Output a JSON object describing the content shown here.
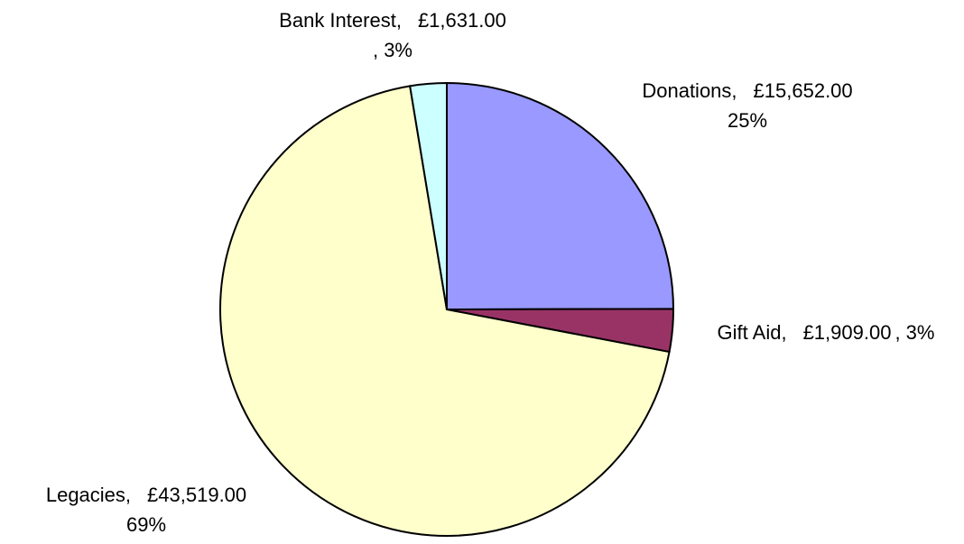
{
  "chart_data": {
    "type": "pie",
    "categories": [
      "Donations",
      "Gift Aid",
      "Legacies",
      "Bank Interest"
    ],
    "values": [
      15652,
      1909,
      43519,
      1631
    ],
    "value_labels": [
      "£15,652.00",
      "£1,909.00",
      "£43,519.00",
      "£1,631.00"
    ],
    "percents": [
      25,
      3,
      69,
      3
    ],
    "percent_labels": [
      "25%",
      ", 3%",
      "69%",
      ", 3%"
    ],
    "colors": [
      "#9999ff",
      "#993366",
      "#ffffcc",
      "#ccffff"
    ]
  }
}
